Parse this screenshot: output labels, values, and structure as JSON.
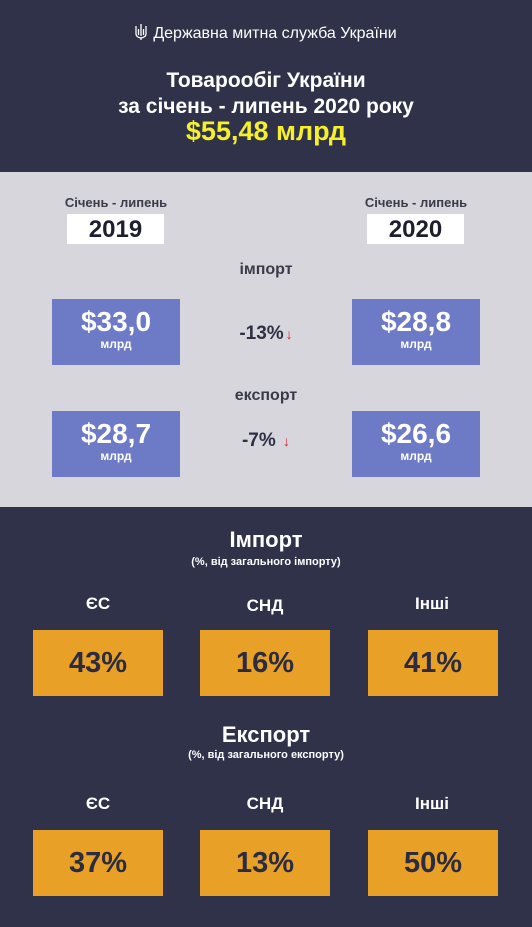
{
  "header": {
    "agency": "Державна митна служба України",
    "title_line1": "Товарообіг України",
    "title_line2": "за січень - липень 2020 року",
    "total": "$55,48 млрд"
  },
  "compare": {
    "left": {
      "period": "Січень - липень",
      "year": "2019"
    },
    "right": {
      "period": "Січень - липень",
      "year": "2020"
    },
    "import": {
      "label": "імпорт",
      "left_value": "$33,0",
      "left_unit": "млрд",
      "change": "-13%",
      "right_value": "$28,8",
      "right_unit": "млрд"
    },
    "export": {
      "label": "експорт",
      "left_value": "$28,7",
      "left_unit": "млрд",
      "change": "-7%",
      "right_value": "$26,6",
      "right_unit": "млрд"
    },
    "arrow_icon": "arrow-down-icon"
  },
  "import_share": {
    "title": "Імпорт",
    "subtitle": "(%, від загального імпорту)",
    "regions": [
      {
        "label": "ЄС",
        "value": "43%"
      },
      {
        "label": "СНД",
        "value": "16%"
      },
      {
        "label": "Інші",
        "value": "41%"
      }
    ]
  },
  "export_share": {
    "title": "Експорт",
    "subtitle": "(%, від загального експорту)",
    "regions": [
      {
        "label": "ЄС",
        "value": "37%"
      },
      {
        "label": "СНД",
        "value": "13%"
      },
      {
        "label": "Інші",
        "value": "50%"
      }
    ]
  },
  "colors": {
    "dark_bg": "#2f3249",
    "light_bg": "#d6d6dc",
    "value_box": "#6d7ac6",
    "share_box": "#e8a126",
    "total": "#f5f02b",
    "arrow": "#d81f26"
  }
}
